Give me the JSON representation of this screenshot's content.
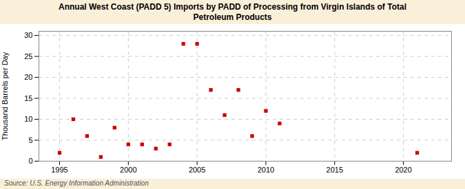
{
  "chart_data": {
    "type": "scatter",
    "title": "Annual West Coast (PADD 5) Imports by PADD of Processing from Virgin Islands of Total\nPetroleum Products",
    "ylabel": "Thousand Barrels per Day",
    "annotations": [
      "Source: U.S. Energy Information Administration"
    ],
    "x": [
      1995,
      1996,
      1997,
      1998,
      1999,
      2000,
      2001,
      2002,
      2003,
      2004,
      2005,
      2006,
      2007,
      2008,
      2009,
      2010,
      2011,
      2021
    ],
    "values": [
      2,
      10,
      6,
      1,
      8,
      4,
      4,
      3,
      4,
      28,
      28,
      17,
      11,
      17,
      6,
      12,
      9,
      2
    ],
    "color": "#cc0000",
    "marker": "square",
    "xlim": [
      1993.5,
      2023.5
    ],
    "ylim": [
      0,
      31
    ],
    "xticks": [
      1995,
      2000,
      2005,
      2010,
      2015,
      2020
    ],
    "yticks": [
      0,
      5,
      10,
      15,
      20,
      25,
      30
    ],
    "grid": true
  }
}
